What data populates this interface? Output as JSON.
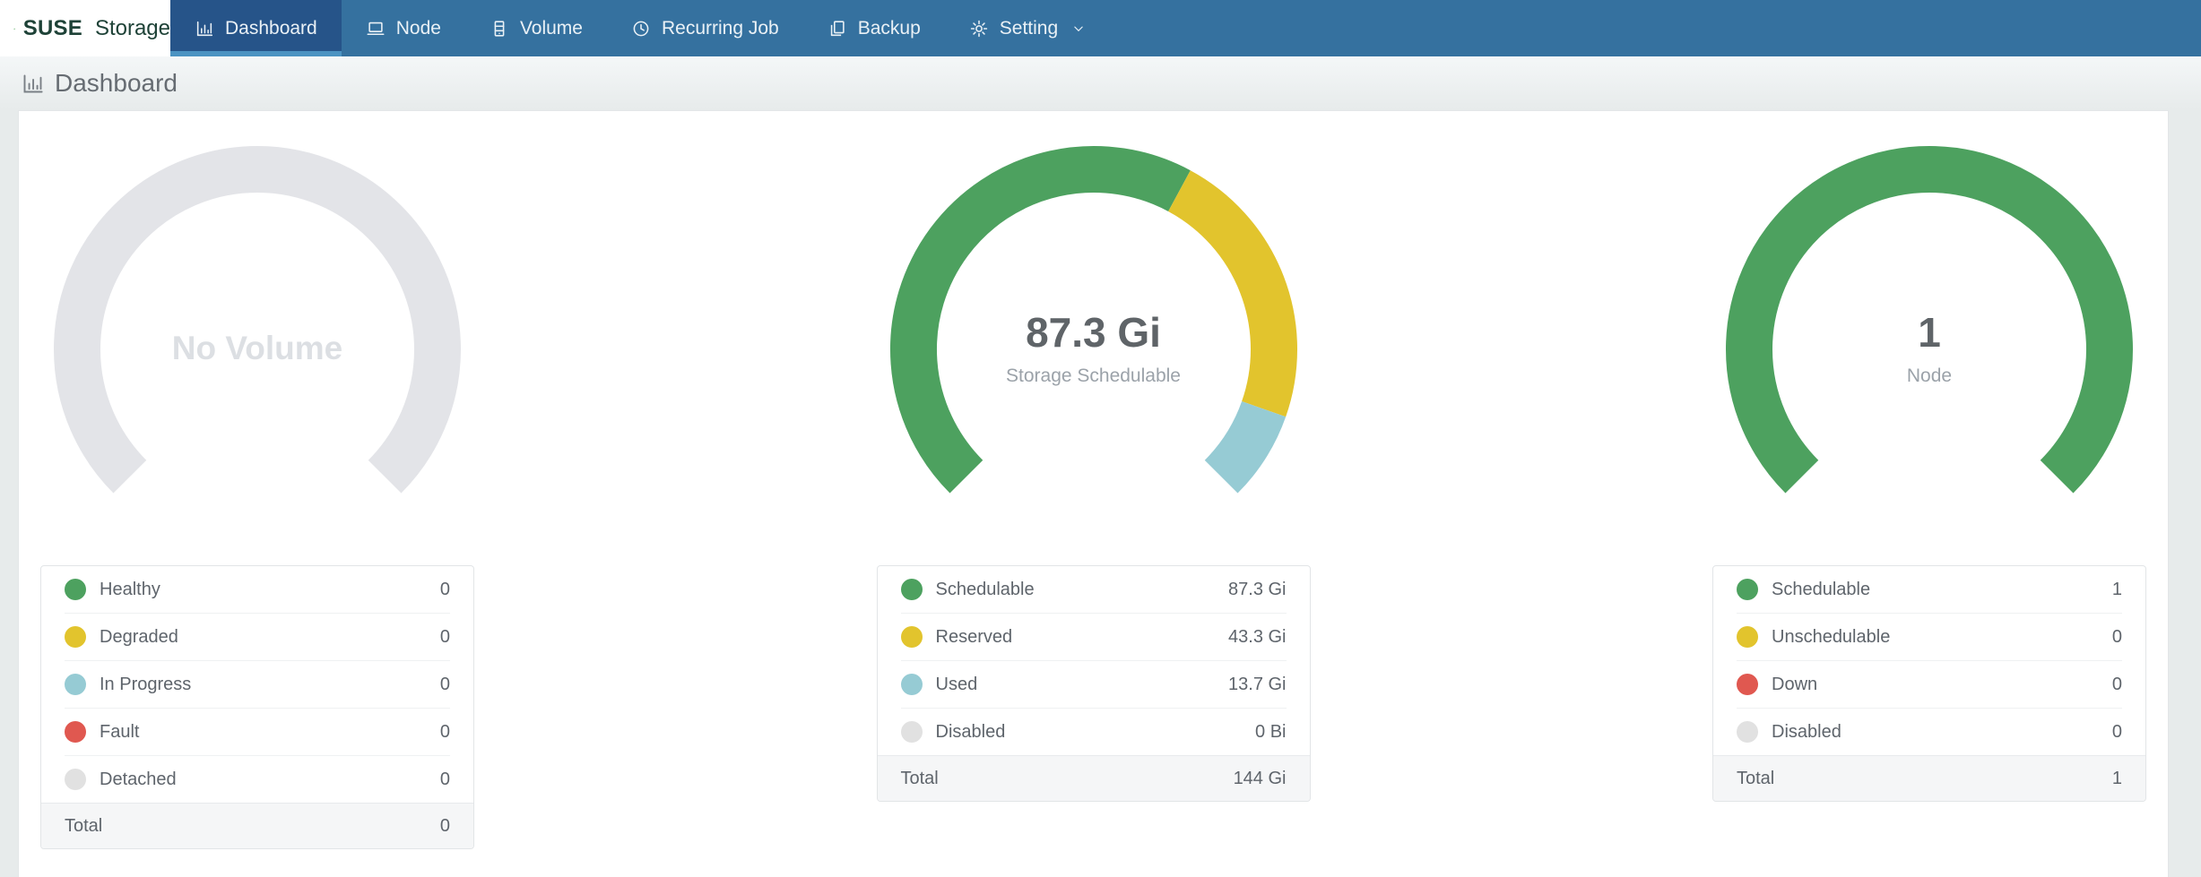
{
  "navbar": {
    "brand": {
      "name": "SUSE",
      "suffix": "Storage"
    },
    "items": [
      {
        "label": "Dashboard",
        "icon": "dashboard-icon",
        "active": true,
        "has_dropdown": false
      },
      {
        "label": "Node",
        "icon": "node-icon",
        "active": false,
        "has_dropdown": false
      },
      {
        "label": "Volume",
        "icon": "volume-icon",
        "active": false,
        "has_dropdown": false
      },
      {
        "label": "Recurring Job",
        "icon": "recurring-job-icon",
        "active": false,
        "has_dropdown": false
      },
      {
        "label": "Backup",
        "icon": "backup-icon",
        "active": false,
        "has_dropdown": false
      },
      {
        "label": "Setting",
        "icon": "setting-icon",
        "active": false,
        "has_dropdown": true
      }
    ]
  },
  "page": {
    "title": "Dashboard"
  },
  "colors": {
    "nav_bg": "#35719F",
    "nav_active_bg": "#265489",
    "nav_active_underline": "#4B93C2",
    "brand_text": "#1E4237",
    "healthy_green": "#4DA15F",
    "warning_yellow": "#E2C42D",
    "progress_blue": "#96CBD4",
    "fault_red": "#E05850",
    "neutral_gray": "#E1E1E1",
    "empty_ring_gray": "#E3E4E8"
  },
  "chart_data": [
    {
      "id": "volume",
      "type": "gauge",
      "title": "Volume summary",
      "center_text": "No Volume",
      "center_caption": "",
      "center_style": "placeholder",
      "arc": {
        "start_angle": 225,
        "span_degrees": 270
      },
      "segments": [
        {
          "label": "empty",
          "value": 1,
          "color": "#E3E4E8"
        }
      ],
      "legend_rows": [
        {
          "label": "Healthy",
          "value": "0",
          "color": "#4DA15F"
        },
        {
          "label": "Degraded",
          "value": "0",
          "color": "#E2C42D"
        },
        {
          "label": "In Progress",
          "value": "0",
          "color": "#96CBD4"
        },
        {
          "label": "Fault",
          "value": "0",
          "color": "#E05850"
        },
        {
          "label": "Detached",
          "value": "0",
          "color": "#E1E1E1"
        }
      ],
      "total": {
        "label": "Total",
        "value": "0"
      }
    },
    {
      "id": "storage",
      "type": "gauge",
      "title": "Storage summary",
      "center_text": "87.3 Gi",
      "center_caption": "Storage Schedulable",
      "center_style": "value",
      "arc": {
        "start_angle": 225,
        "span_degrees": 270
      },
      "segments": [
        {
          "label": "Schedulable",
          "value": 87.3,
          "color": "#4DA15F"
        },
        {
          "label": "Reserved",
          "value": 43.3,
          "color": "#E2C42D"
        },
        {
          "label": "Used",
          "value": 13.7,
          "color": "#96CBD4"
        },
        {
          "label": "Disabled",
          "value": 0,
          "color": "#E1E1E1"
        }
      ],
      "legend_rows": [
        {
          "label": "Schedulable",
          "value": "87.3 Gi",
          "color": "#4DA15F"
        },
        {
          "label": "Reserved",
          "value": "43.3 Gi",
          "color": "#E2C42D"
        },
        {
          "label": "Used",
          "value": "13.7 Gi",
          "color": "#96CBD4"
        },
        {
          "label": "Disabled",
          "value": "0 Bi",
          "color": "#E1E1E1"
        }
      ],
      "total": {
        "label": "Total",
        "value": "144 Gi"
      }
    },
    {
      "id": "node",
      "type": "gauge",
      "title": "Node summary",
      "center_text": "1",
      "center_caption": "Node",
      "center_style": "value",
      "arc": {
        "start_angle": 225,
        "span_degrees": 270
      },
      "segments": [
        {
          "label": "Schedulable",
          "value": 1,
          "color": "#4DA15F"
        },
        {
          "label": "Unschedulable",
          "value": 0,
          "color": "#E2C42D"
        },
        {
          "label": "Down",
          "value": 0,
          "color": "#E05850"
        },
        {
          "label": "Disabled",
          "value": 0,
          "color": "#E1E1E1"
        }
      ],
      "legend_rows": [
        {
          "label": "Schedulable",
          "value": "1",
          "color": "#4DA15F"
        },
        {
          "label": "Unschedulable",
          "value": "0",
          "color": "#E2C42D"
        },
        {
          "label": "Down",
          "value": "0",
          "color": "#E05850"
        },
        {
          "label": "Disabled",
          "value": "0",
          "color": "#E1E1E1"
        }
      ],
      "total": {
        "label": "Total",
        "value": "1"
      }
    }
  ]
}
